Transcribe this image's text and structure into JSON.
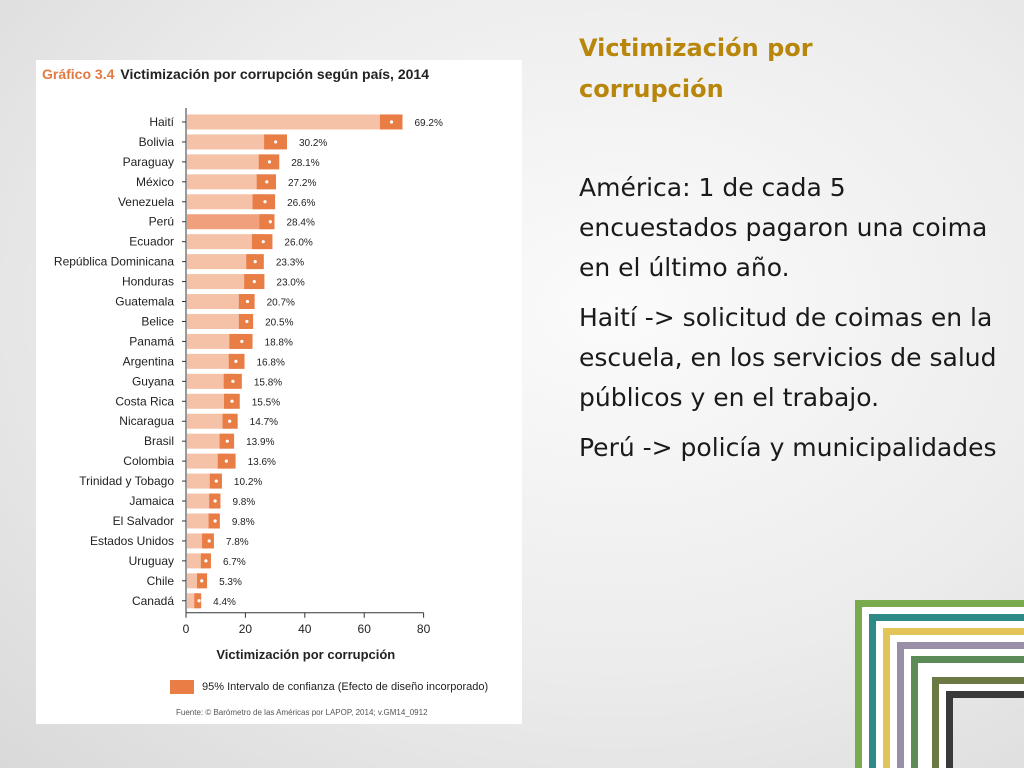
{
  "slide": {
    "title": "Victimización por corrupción",
    "paragraphs": [
      "América: 1 de cada 5 encuestados pagaron una coima en el último año.",
      "Haití -> solicitud de coimas en la escuela, en los servicios de salud públicos y en el trabajo.",
      "Perú -> policía y municipalidades"
    ]
  },
  "chart_data": {
    "type": "bar",
    "orientation": "horizontal",
    "title_number": "Gráfico 3.4",
    "title": "Victimización por corrupción según país, 2014",
    "xlabel": "Victimización por corrupción",
    "xlim": [
      0,
      80
    ],
    "xticks": [
      "0",
      "20",
      "40",
      "60",
      "80"
    ],
    "grid": false,
    "legend_label": "95% Intervalo de confianza (Efecto de diseño incorporado)",
    "legend_position": "bottom",
    "source": "Fuente: © Barómetro de las Américas por LAPOP, 2014; v.GM14_0912",
    "categories": [
      "Haití",
      "Bolivia",
      "Paraguay",
      "México",
      "Venezuela",
      "Perú",
      "Ecuador",
      "República Dominicana",
      "Honduras",
      "Guatemala",
      "Belice",
      "Panamá",
      "Argentina",
      "Guyana",
      "Costa Rica",
      "Nicaragua",
      "Brasil",
      "Colombia",
      "Trinidad y Tobago",
      "Jamaica",
      "El Salvador",
      "Estados Unidos",
      "Uruguay",
      "Chile",
      "Canadá"
    ],
    "values": [
      69.2,
      30.2,
      28.1,
      27.2,
      26.6,
      28.4,
      26.0,
      23.3,
      23.0,
      20.7,
      20.5,
      18.8,
      16.8,
      15.8,
      15.5,
      14.7,
      13.9,
      13.6,
      10.2,
      9.8,
      9.8,
      7.8,
      6.7,
      5.3,
      4.4
    ],
    "value_labels": [
      "69.2%",
      "30.2%",
      "28.1%",
      "27.2%",
      "26.6%",
      "28.4%",
      "26.0%",
      "23.3%",
      "23.0%",
      "20.7%",
      "20.5%",
      "18.8%",
      "16.8%",
      "15.8%",
      "15.5%",
      "14.7%",
      "13.9%",
      "13.6%",
      "10.2%",
      "9.8%",
      "9.8%",
      "7.8%",
      "6.7%",
      "5.3%",
      "4.4%"
    ],
    "ci_low": [
      65.3,
      26.3,
      24.5,
      23.8,
      22.4,
      24.7,
      22.2,
      20.3,
      19.6,
      17.8,
      17.8,
      14.6,
      14.4,
      12.7,
      12.8,
      12.3,
      11.3,
      10.7,
      8.0,
      7.8,
      7.6,
      5.4,
      5.0,
      3.7,
      2.8
    ],
    "ci_high": [
      72.9,
      34.0,
      31.4,
      30.3,
      30.0,
      29.8,
      29.1,
      26.2,
      26.4,
      23.1,
      22.6,
      22.4,
      19.7,
      18.8,
      18.1,
      17.4,
      16.2,
      16.7,
      12.1,
      11.6,
      11.4,
      9.4,
      8.4,
      7.1,
      5.1
    ],
    "colors": {
      "bar": "#f5c2a7",
      "bar_highlight": "#f0a07c",
      "ci": "#e97d46",
      "point": "#ffffff"
    }
  }
}
